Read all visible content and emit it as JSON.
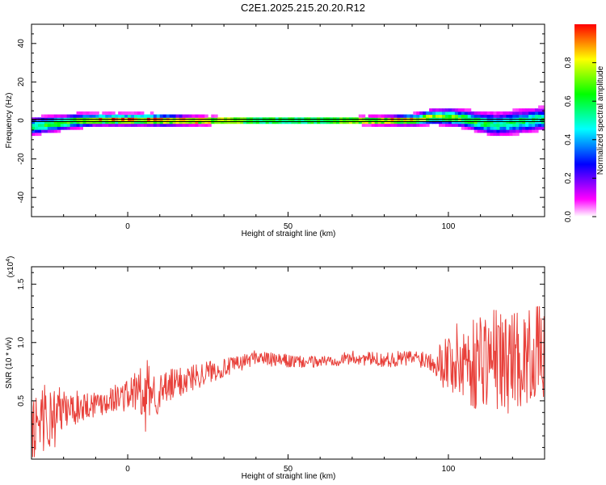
{
  "figure_title": "C2E1.2025.215.20.20.R12",
  "chart_data": [
    {
      "type": "heatmap",
      "panel": "spectrogram",
      "xlabel": "Height of straight line (km)",
      "ylabel": "Frequency (Hz)",
      "xlim": [
        -30,
        130
      ],
      "ylim": [
        -50,
        50
      ],
      "x_ticks": [
        0,
        50,
        100
      ],
      "y_ticks": [
        -40,
        -20,
        0,
        20,
        40
      ],
      "grid": false,
      "colorbar": {
        "label": "Normalized spectral amplitude",
        "range": [
          0.0,
          1.0
        ],
        "ticks": [
          0.0,
          0.2,
          0.4,
          0.6,
          0.8
        ],
        "tick_labels": [
          "0.0",
          "0.2",
          "0.4",
          "0.6",
          "0.8"
        ],
        "colormap": [
          "#ffffff",
          "#ff00ff",
          "#8000ff",
          "#0000ff",
          "#0080ff",
          "#00ffff",
          "#00ff80",
          "#00ff00",
          "#80ff00",
          "#ffff00",
          "#ff8000",
          "#ff0000"
        ]
      },
      "ridge": {
        "x": [
          -30,
          -25,
          -20,
          -15,
          -10,
          -5,
          0,
          5,
          10,
          20,
          40,
          60,
          80,
          90,
          95,
          100,
          105,
          110,
          115,
          120,
          125,
          130
        ],
        "center_hz": [
          -3,
          -2,
          -1,
          0,
          0.5,
          0.5,
          0.5,
          0.5,
          0.3,
          0,
          0,
          0,
          0,
          0.5,
          2,
          2,
          1,
          -1,
          -2,
          -1,
          0,
          1
        ],
        "halfwidth_hz": [
          3,
          3,
          2.5,
          2.5,
          2,
          2,
          2,
          2,
          2,
          1.5,
          1,
          1,
          1.5,
          2,
          2.5,
          3,
          3,
          3.5,
          4,
          4,
          4,
          4
        ],
        "peak_amplitude": [
          0.55,
          0.6,
          0.65,
          0.7,
          0.85,
          0.9,
          0.95,
          0.9,
          0.95,
          1.0,
          1.0,
          1.0,
          0.95,
          0.85,
          0.75,
          0.7,
          0.65,
          0.6,
          0.55,
          0.55,
          0.55,
          0.55
        ]
      }
    },
    {
      "type": "line",
      "panel": "snr",
      "xlabel": "Height of straight line (km)",
      "ylabel": "SNR (10 * v/v)",
      "scale_note": "(x10",
      "scale_exponent": "4",
      "scale_close": ")",
      "xlim": [
        -30,
        130
      ],
      "ylim": [
        0,
        1.65
      ],
      "x_ticks": [
        0,
        50,
        100
      ],
      "y_ticks": [
        0.5,
        1.0,
        1.5
      ],
      "y_tick_labels": [
        "0.5",
        "1.0",
        "1.5"
      ],
      "grid": false,
      "series": [
        {
          "color": "#e8403a",
          "x": [
            -30,
            -27,
            -25,
            -23,
            -20,
            -18,
            -15,
            -12,
            -10,
            -7,
            -5,
            -3,
            0,
            2,
            4,
            5,
            6,
            8,
            10,
            12,
            15,
            20,
            25,
            30,
            35,
            40,
            45,
            50,
            55,
            60,
            65,
            70,
            75,
            80,
            85,
            90,
            95,
            98,
            100,
            103,
            105,
            108,
            110,
            113,
            115,
            118,
            120,
            123,
            125,
            128,
            130
          ],
          "y": [
            0.1,
            0.45,
            0.3,
            0.38,
            0.42,
            0.43,
            0.45,
            0.47,
            0.48,
            0.5,
            0.52,
            0.53,
            0.55,
            0.57,
            0.6,
            0.35,
            0.6,
            0.58,
            0.55,
            0.6,
            0.65,
            0.7,
            0.75,
            0.78,
            0.82,
            0.88,
            0.85,
            0.84,
            0.83,
            0.84,
            0.85,
            0.87,
            0.86,
            0.85,
            0.86,
            0.87,
            0.85,
            0.83,
            0.85,
            0.82,
            0.88,
            0.8,
            0.9,
            0.85,
            0.88,
            0.8,
            0.9,
            0.85,
            0.88,
            0.92,
            0.9
          ],
          "noise_amplitude": [
            0.35,
            0.35,
            0.3,
            0.3,
            0.18,
            0.15,
            0.14,
            0.12,
            0.12,
            0.12,
            0.12,
            0.12,
            0.14,
            0.18,
            0.25,
            0.3,
            0.25,
            0.2,
            0.18,
            0.16,
            0.14,
            0.12,
            0.1,
            0.08,
            0.07,
            0.06,
            0.06,
            0.06,
            0.05,
            0.05,
            0.05,
            0.06,
            0.06,
            0.06,
            0.07,
            0.07,
            0.1,
            0.2,
            0.3,
            0.35,
            0.4,
            0.4,
            0.42,
            0.45,
            0.45,
            0.45,
            0.42,
            0.42,
            0.4,
            0.4,
            0.4
          ]
        }
      ]
    }
  ]
}
